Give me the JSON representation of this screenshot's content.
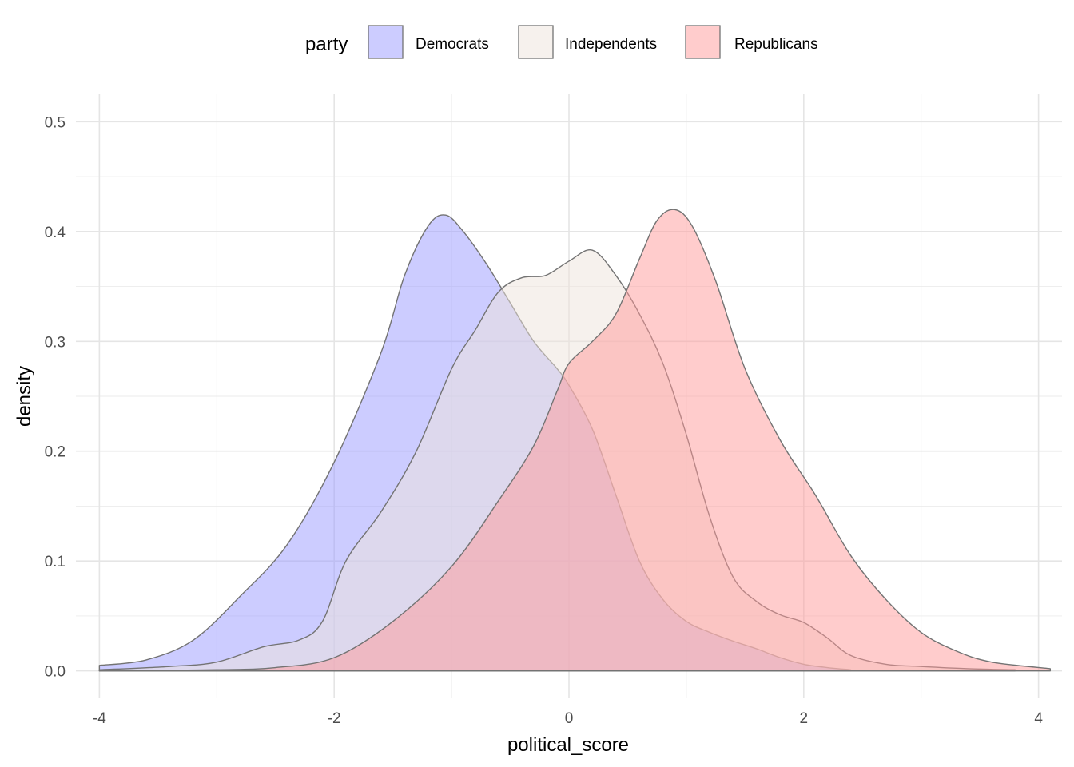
{
  "chart_data": {
    "type": "area",
    "title": "",
    "xlabel": "political_score",
    "ylabel": "density",
    "xlim": [
      -4.2,
      4.2
    ],
    "ylim": [
      -0.025,
      0.525
    ],
    "x_ticks": [
      -4,
      -2,
      0,
      2,
      4
    ],
    "x_tick_labels": [
      "-4",
      "-2",
      "0",
      "2",
      "4"
    ],
    "y_ticks": [
      0.0,
      0.1,
      0.2,
      0.3,
      0.4,
      0.5
    ],
    "y_tick_labels": [
      "0.0",
      "0.1",
      "0.2",
      "0.3",
      "0.4",
      "0.5"
    ],
    "grid": true,
    "legend": {
      "title": "party",
      "position": "top"
    },
    "outline_color": "#737373",
    "series": [
      {
        "name": "Democrats",
        "color": "#9999ff",
        "x": [
          -4.0,
          -3.6,
          -3.2,
          -2.8,
          -2.4,
          -2.0,
          -1.6,
          -1.4,
          -1.2,
          -1.05,
          -0.9,
          -0.7,
          -0.5,
          -0.3,
          -0.1,
          0.0,
          0.2,
          0.4,
          0.6,
          0.8,
          1.0,
          1.2,
          1.4,
          1.6,
          1.8,
          2.0,
          2.2,
          2.4
        ],
        "y": [
          0.005,
          0.01,
          0.028,
          0.068,
          0.115,
          0.19,
          0.29,
          0.36,
          0.405,
          0.415,
          0.4,
          0.37,
          0.335,
          0.3,
          0.275,
          0.26,
          0.22,
          0.16,
          0.1,
          0.065,
          0.045,
          0.035,
          0.027,
          0.02,
          0.012,
          0.006,
          0.003,
          0.001
        ]
      },
      {
        "name": "Independents",
        "color": "#eee4dc",
        "x": [
          -4.0,
          -3.4,
          -3.0,
          -2.6,
          -2.3,
          -2.1,
          -1.9,
          -1.6,
          -1.3,
          -1.0,
          -0.8,
          -0.6,
          -0.4,
          -0.2,
          0.0,
          0.2,
          0.4,
          0.6,
          0.8,
          1.0,
          1.2,
          1.4,
          1.6,
          1.8,
          2.0,
          2.2,
          2.4,
          2.7,
          3.0,
          3.4,
          3.8
        ],
        "y": [
          0.001,
          0.004,
          0.008,
          0.022,
          0.028,
          0.045,
          0.1,
          0.145,
          0.2,
          0.275,
          0.31,
          0.345,
          0.358,
          0.36,
          0.373,
          0.383,
          0.36,
          0.325,
          0.28,
          0.215,
          0.14,
          0.085,
          0.063,
          0.051,
          0.044,
          0.03,
          0.014,
          0.006,
          0.004,
          0.002,
          0.001
        ]
      },
      {
        "name": "Republicans",
        "color": "#ff9999",
        "x": [
          -4.0,
          -3.0,
          -2.5,
          -2.0,
          -1.5,
          -1.0,
          -0.6,
          -0.3,
          -0.1,
          0.0,
          0.2,
          0.4,
          0.6,
          0.75,
          0.9,
          1.05,
          1.25,
          1.5,
          1.8,
          2.1,
          2.4,
          2.7,
          3.0,
          3.3,
          3.6,
          4.1
        ],
        "y": [
          0.0,
          0.001,
          0.003,
          0.012,
          0.045,
          0.095,
          0.155,
          0.205,
          0.255,
          0.28,
          0.3,
          0.325,
          0.375,
          0.41,
          0.42,
          0.405,
          0.355,
          0.275,
          0.21,
          0.16,
          0.105,
          0.065,
          0.035,
          0.018,
          0.008,
          0.002
        ]
      }
    ]
  }
}
